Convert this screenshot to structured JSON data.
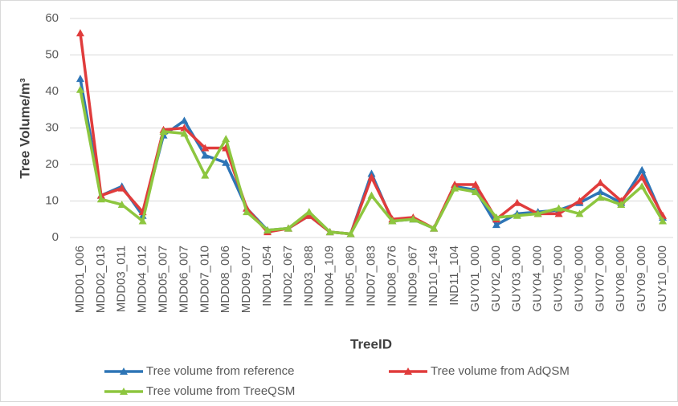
{
  "chart_data": {
    "type": "line",
    "y_label": "Tree Volume/m³",
    "x_label": "TreeID",
    "categories": [
      "MDD01_006",
      "MDD02_013",
      "MDD03_011",
      "MDD04_012",
      "MDD05_007",
      "MDD06_007",
      "MDD07_010",
      "MDD08_006",
      "MDD09_007",
      "IND01_054",
      "IND02_067",
      "IND03_088",
      "IND04_109",
      "IND05_080",
      "IND07_083",
      "IND08_076",
      "IND09_067",
      "IND10_149",
      "IND11_104",
      "GUY01_000",
      "GUY02_000",
      "GUY03_000",
      "GUY04_000",
      "GUY05_000",
      "GUY06_000",
      "GUY07_000",
      "GUY08_000",
      "GUY09_000",
      "GUY10_000"
    ],
    "series": [
      {
        "name": "Tree volume from reference",
        "color": "#2e75b6",
        "values": [
          43.5,
          11.5,
          14,
          6,
          28,
          32,
          22.5,
          20.5,
          8,
          2,
          2.5,
          6,
          1.5,
          1,
          17.5,
          4.5,
          5,
          2.5,
          14,
          13,
          3.5,
          6.5,
          7,
          7.5,
          9.5,
          12.5,
          9.5,
          18.5,
          5.5
        ]
      },
      {
        "name": "Tree volume from AdQSM",
        "color": "#e03c3c",
        "values": [
          56,
          11.5,
          13.5,
          7,
          29.5,
          30,
          24.5,
          24.5,
          8,
          1.5,
          2.5,
          6,
          1.5,
          1,
          16.5,
          5,
          5.5,
          2.5,
          14.5,
          14.5,
          5,
          9.5,
          6.5,
          6.5,
          10,
          15,
          10,
          16.5,
          6
        ]
      },
      {
        "name": "Tree volume from TreeQSM",
        "color": "#8dc63f",
        "values": [
          40.5,
          10.5,
          9,
          4.5,
          29,
          28.5,
          17,
          27,
          7,
          2,
          2.5,
          7,
          1.5,
          1,
          11.5,
          4.5,
          5,
          2.5,
          13.5,
          12.5,
          5.5,
          6,
          6.5,
          8,
          6.5,
          11,
          9,
          14,
          4.5
        ]
      }
    ],
    "ylim": [
      0,
      60
    ],
    "yticks": [
      0,
      10,
      20,
      30,
      40,
      50,
      60
    ],
    "grid": true
  }
}
